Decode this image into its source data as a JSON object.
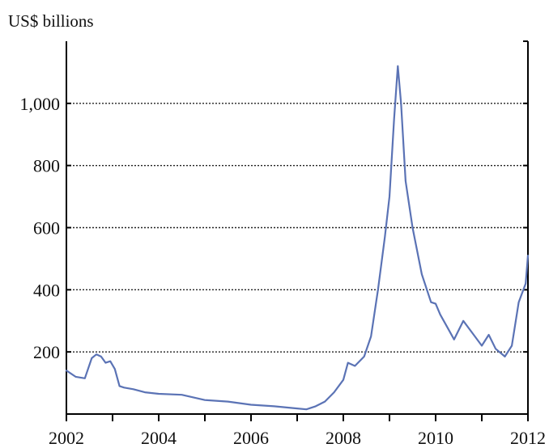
{
  "chart_data": {
    "type": "line",
    "unit_label": "US$ billions",
    "x_ticks": [
      "2002",
      "2004",
      "2006",
      "2008",
      "2010",
      "2012"
    ],
    "xlim": [
      2002,
      2012
    ],
    "y_ticks": [
      "200",
      "400",
      "600",
      "800",
      "1,000"
    ],
    "y_tick_values": [
      200,
      400,
      600,
      800,
      1000
    ],
    "ylim": [
      0,
      1200
    ],
    "grid": true,
    "series": [
      {
        "color": "#5b73b5",
        "x": [
          2002.0,
          2002.2,
          2002.4,
          2002.55,
          2002.65,
          2002.75,
          2002.85,
          2002.95,
          2003.05,
          2003.15,
          2003.25,
          2003.45,
          2003.7,
          2004.0,
          2004.5,
          2005.0,
          2005.5,
          2006.0,
          2006.5,
          2007.0,
          2007.2,
          2007.4,
          2007.6,
          2007.8,
          2008.0,
          2008.1,
          2008.25,
          2008.45,
          2008.6,
          2008.75,
          2008.9,
          2009.0,
          2009.1,
          2009.18,
          2009.25,
          2009.35,
          2009.5,
          2009.7,
          2009.9,
          2010.0,
          2010.1,
          2010.25,
          2010.4,
          2010.6,
          2010.8,
          2011.0,
          2011.15,
          2011.3,
          2011.5,
          2011.65,
          2011.8,
          2011.95,
          2012.0
        ],
        "y": [
          140,
          120,
          115,
          180,
          192,
          185,
          165,
          170,
          145,
          90,
          85,
          80,
          70,
          65,
          62,
          45,
          40,
          30,
          25,
          18,
          15,
          25,
          40,
          70,
          110,
          165,
          155,
          185,
          250,
          400,
          570,
          700,
          950,
          1120,
          1000,
          750,
          600,
          450,
          360,
          355,
          320,
          280,
          240,
          300,
          260,
          220,
          255,
          210,
          185,
          220,
          360,
          420,
          510
        ]
      }
    ]
  }
}
